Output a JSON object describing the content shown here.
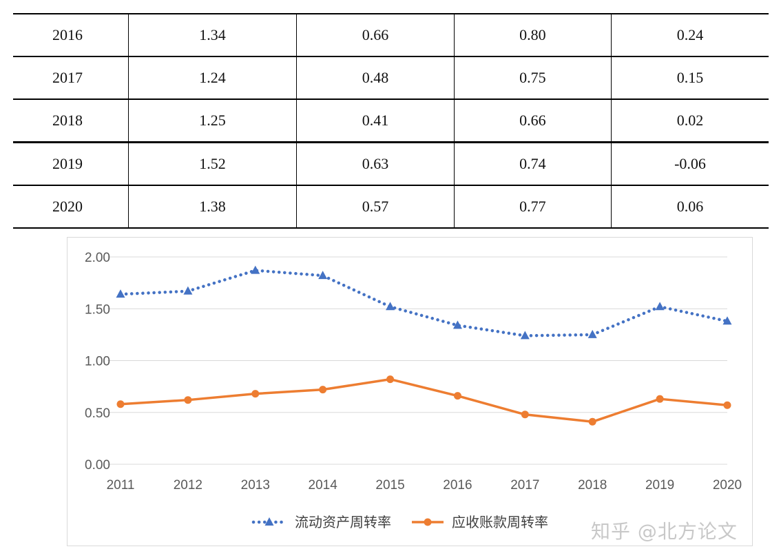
{
  "table": {
    "rows": [
      {
        "year": "2016",
        "c1": "1.34",
        "c2": "0.66",
        "c3": "0.80",
        "c4": "0.24"
      },
      {
        "year": "2017",
        "c1": "1.24",
        "c2": "0.48",
        "c3": "0.75",
        "c4": "0.15"
      },
      {
        "year": "2018",
        "c1": "1.25",
        "c2": "0.41",
        "c3": "0.66",
        "c4": "0.02"
      },
      {
        "year": "2019",
        "c1": "1.52",
        "c2": "0.63",
        "c3": "0.74",
        "c4": "-0.06"
      },
      {
        "year": "2020",
        "c1": "1.38",
        "c2": "0.57",
        "c3": "0.77",
        "c4": "0.06"
      }
    ]
  },
  "chart_data": {
    "type": "line",
    "categories": [
      "2011",
      "2012",
      "2013",
      "2014",
      "2015",
      "2016",
      "2017",
      "2018",
      "2019",
      "2020"
    ],
    "ylim": [
      0,
      2
    ],
    "yticks": [
      "0.00",
      "0.50",
      "1.00",
      "1.50",
      "2.00"
    ],
    "grid": true,
    "legend_position": "bottom",
    "series": [
      {
        "name": "流动资产周转率",
        "color": "#4472c4",
        "style": "dotted",
        "marker": "triangle",
        "values": [
          1.64,
          1.67,
          1.87,
          1.82,
          1.52,
          1.34,
          1.24,
          1.25,
          1.52,
          1.38
        ]
      },
      {
        "name": "应收账款周转率",
        "color": "#ed7d31",
        "style": "solid",
        "marker": "circle",
        "values": [
          0.58,
          0.62,
          0.68,
          0.72,
          0.82,
          0.66,
          0.48,
          0.41,
          0.63,
          0.57
        ]
      }
    ]
  },
  "watermark": "知乎 @北方论文"
}
